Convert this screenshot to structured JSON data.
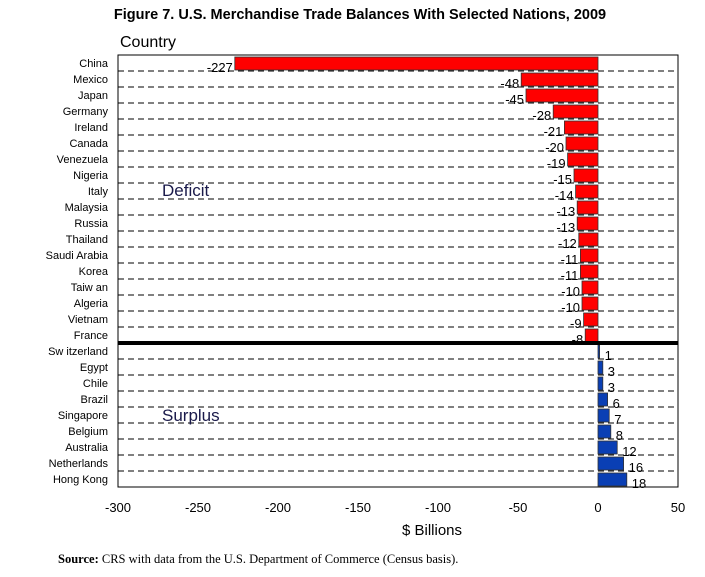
{
  "chart_data": {
    "type": "bar",
    "orientation": "horizontal",
    "title": "Figure 7. U.S. Merchandise Trade Balances With Selected Nations, 2009",
    "ylabel": "Country",
    "xlabel": "$ Billions",
    "xlim": [
      -300,
      50
    ],
    "xticks": [
      -300,
      -250,
      -200,
      -150,
      -100,
      -50,
      0,
      50
    ],
    "categories": [
      "China",
      "Mexico",
      "Japan",
      "Germany",
      "Ireland",
      "Canada",
      "Venezuela",
      "Nigeria",
      "Italy",
      "Malaysia",
      "Russia",
      "Thailand",
      "Saudi Arabia",
      "Korea",
      "Taiw an",
      "Algeria",
      "Vietnam",
      "France",
      "Sw itzerland",
      "Egypt",
      "Chile",
      "Brazil",
      "Singapore",
      "Belgium",
      "Australia",
      "Netherlands",
      "Hong Kong"
    ],
    "values": [
      -227,
      -48,
      -45,
      -28,
      -21,
      -20,
      -19,
      -15,
      -14,
      -13,
      -13,
      -12,
      -11,
      -11,
      -10,
      -10,
      -9,
      -8,
      1,
      3,
      3,
      6,
      7,
      8,
      12,
      16,
      18
    ],
    "annotations": {
      "deficit": "Deficit",
      "surplus": "Surplus"
    },
    "colors": {
      "deficit": "#ff0000",
      "surplus": "#0a3fb4"
    },
    "source_label": "Source:",
    "source_text": " CRS with data from the U.S. Department of Commerce (Census basis)."
  }
}
